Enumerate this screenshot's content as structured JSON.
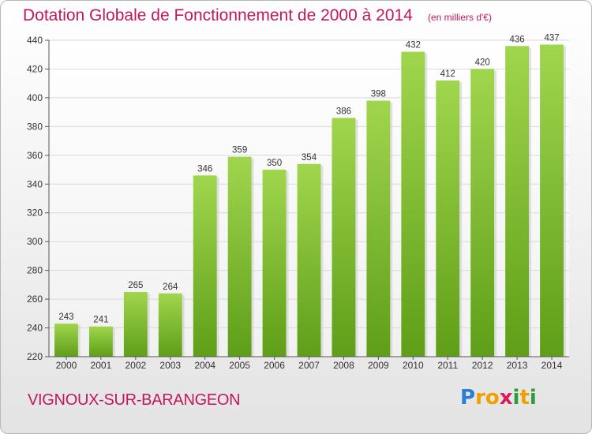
{
  "chart_data": {
    "type": "bar",
    "title": "Dotation Globale de Fonctionnement de 2000 à 2014",
    "subtitle": "(en milliers d'€)",
    "categories": [
      "2000",
      "2001",
      "2002",
      "2003",
      "2004",
      "2005",
      "2006",
      "2007",
      "2008",
      "2009",
      "2010",
      "2011",
      "2012",
      "2013",
      "2014"
    ],
    "values": [
      243,
      241,
      265,
      264,
      346,
      359,
      350,
      354,
      386,
      398,
      432,
      412,
      420,
      436,
      437
    ],
    "xlabel": "",
    "ylabel": "",
    "ylim": [
      220,
      440
    ],
    "yticks": [
      220,
      240,
      260,
      280,
      300,
      320,
      340,
      360,
      380,
      400,
      420,
      440
    ],
    "grid": true,
    "legend": "none",
    "bar_color": "#7cbe31"
  },
  "footer": {
    "commune": "VIGNOUX-SUR-BARANGEON",
    "logo_letters": [
      "P",
      "r",
      "o",
      "x",
      "i",
      "t",
      "i"
    ],
    "logo_colors": [
      "#2a7fd4",
      "#f0a000",
      "#f0a000",
      "#d81e5b",
      "#2a9d3a",
      "#f0a000",
      "#2a9d3a"
    ]
  }
}
